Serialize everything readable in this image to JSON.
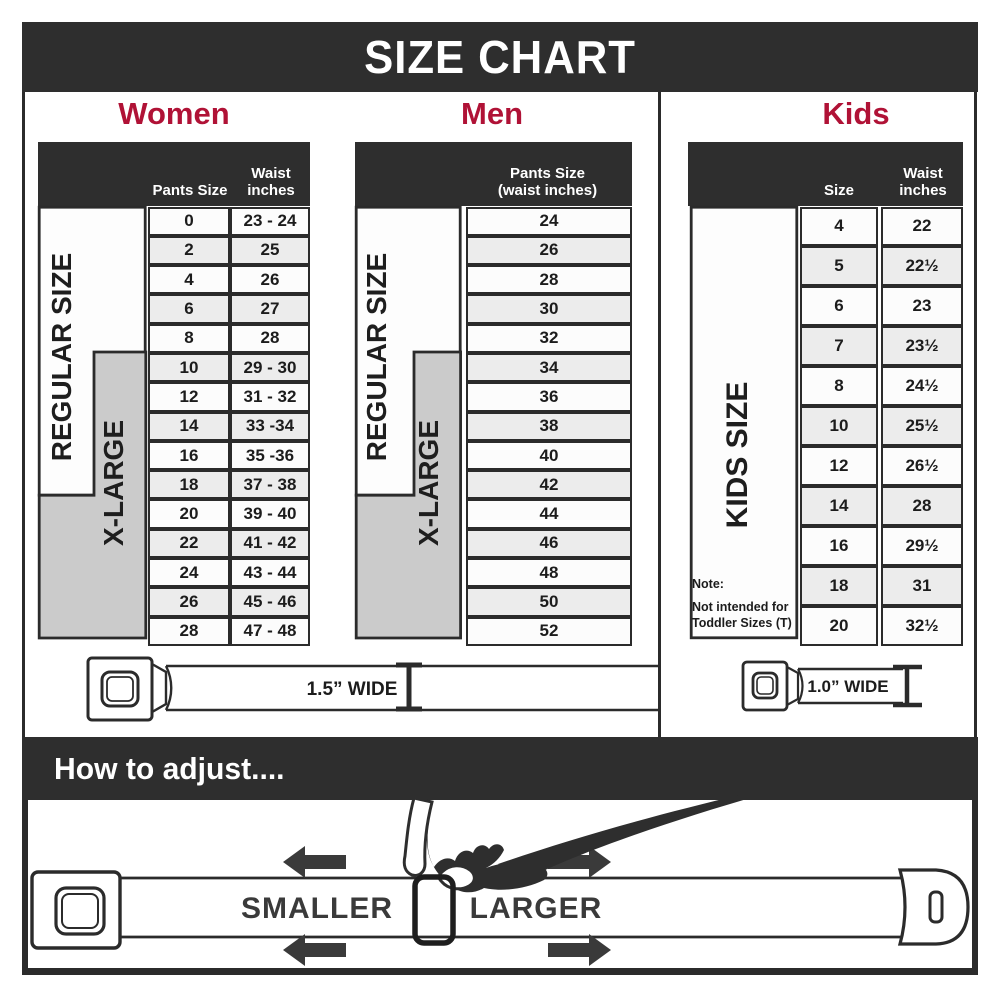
{
  "title": "SIZE CHART",
  "colors": {
    "band_dark": "#2e2e2e",
    "accent_red": "#b01236",
    "row_light": "#fcfcfc",
    "row_alt": "#ececec",
    "label_gray": "#cbcbcb",
    "border_dark": "#2b2b2b"
  },
  "women": {
    "heading": "Women",
    "col1_header": "Pants Size",
    "col2_header_line1": "Waist",
    "col2_header_line2": "inches",
    "regular_label": "REGULAR SIZE",
    "xlarge_label": "X-LARGE",
    "rows": [
      {
        "size": "0",
        "waist": "23 - 24"
      },
      {
        "size": "2",
        "waist": "25"
      },
      {
        "size": "4",
        "waist": "26"
      },
      {
        "size": "6",
        "waist": "27"
      },
      {
        "size": "8",
        "waist": "28"
      },
      {
        "size": "10",
        "waist": "29 - 30"
      },
      {
        "size": "12",
        "waist": "31 - 32"
      },
      {
        "size": "14",
        "waist": "33 -34"
      },
      {
        "size": "16",
        "waist": "35 -36"
      },
      {
        "size": "18",
        "waist": "37 - 38"
      },
      {
        "size": "20",
        "waist": "39 - 40"
      },
      {
        "size": "22",
        "waist": "41 - 42"
      },
      {
        "size": "24",
        "waist": "43 - 44"
      },
      {
        "size": "26",
        "waist": "45 - 46"
      },
      {
        "size": "28",
        "waist": "47 - 48"
      }
    ],
    "belt_width_label": "1.5” WIDE"
  },
  "men": {
    "heading": "Men",
    "col_header_line1": "Pants Size",
    "col_header_line2": "(waist inches)",
    "regular_label": "REGULAR SIZE",
    "xlarge_label": "X-LARGE",
    "rows": [
      "24",
      "26",
      "28",
      "30",
      "32",
      "34",
      "36",
      "38",
      "40",
      "42",
      "44",
      "46",
      "48",
      "50",
      "52"
    ]
  },
  "kids": {
    "heading": "Kids",
    "col1_header": "Size",
    "col2_header_line1": "Waist",
    "col2_header_line2": "inches",
    "label": "KIDS SIZE",
    "note_line1": "Note:",
    "note_line2": "Not intended for",
    "note_line3": "Toddler Sizes (T)",
    "rows": [
      {
        "size": "4",
        "waist": "22"
      },
      {
        "size": "5",
        "waist": "22½"
      },
      {
        "size": "6",
        "waist": "23"
      },
      {
        "size": "7",
        "waist": "23½"
      },
      {
        "size": "8",
        "waist": "24½"
      },
      {
        "size": "10",
        "waist": "25½"
      },
      {
        "size": "12",
        "waist": "26½"
      },
      {
        "size": "14",
        "waist": "28"
      },
      {
        "size": "16",
        "waist": "29½"
      },
      {
        "size": "18",
        "waist": "31"
      },
      {
        "size": "20",
        "waist": "32½"
      }
    ],
    "belt_width_label": "1.0” WIDE"
  },
  "adjust": {
    "heading": "How to adjust....",
    "smaller_label": "SMALLER",
    "larger_label": "LARGER"
  },
  "chart_data": [
    {
      "type": "table",
      "title": "Women",
      "columns": [
        "Pants Size",
        "Waist inches"
      ],
      "row_groups": {
        "REGULAR SIZE": [
          "0",
          "2",
          "4",
          "6",
          "8",
          "10",
          "12",
          "14",
          "16",
          "18"
        ],
        "X-LARGE": [
          "10",
          "12",
          "14",
          "16",
          "18",
          "20",
          "22",
          "24",
          "26",
          "28"
        ]
      },
      "rows": [
        [
          "0",
          "23 - 24"
        ],
        [
          "2",
          "25"
        ],
        [
          "4",
          "26"
        ],
        [
          "6",
          "27"
        ],
        [
          "8",
          "28"
        ],
        [
          "10",
          "29 - 30"
        ],
        [
          "12",
          "31 - 32"
        ],
        [
          "14",
          "33 -34"
        ],
        [
          "16",
          "35 -36"
        ],
        [
          "18",
          "37 - 38"
        ],
        [
          "20",
          "39 - 40"
        ],
        [
          "22",
          "41 - 42"
        ],
        [
          "24",
          "43 - 44"
        ],
        [
          "26",
          "45 - 46"
        ],
        [
          "28",
          "47 - 48"
        ]
      ],
      "belt_width": "1.5” WIDE"
    },
    {
      "type": "table",
      "title": "Men",
      "columns": [
        "Pants Size (waist inches)"
      ],
      "row_groups": {
        "REGULAR SIZE": [
          "24",
          "26",
          "28",
          "30",
          "32",
          "34"
        ],
        "X-LARGE": [
          "34",
          "36",
          "38",
          "40",
          "42",
          "44",
          "46",
          "48",
          "50",
          "52"
        ]
      },
      "rows": [
        [
          "24"
        ],
        [
          "26"
        ],
        [
          "28"
        ],
        [
          "30"
        ],
        [
          "32"
        ],
        [
          "34"
        ],
        [
          "36"
        ],
        [
          "38"
        ],
        [
          "40"
        ],
        [
          "42"
        ],
        [
          "44"
        ],
        [
          "46"
        ],
        [
          "48"
        ],
        [
          "50"
        ],
        [
          "52"
        ]
      ],
      "belt_width": "1.5” WIDE"
    },
    {
      "type": "table",
      "title": "Kids",
      "columns": [
        "Size",
        "Waist inches"
      ],
      "row_groups": {
        "KIDS SIZE": [
          "4",
          "5",
          "6",
          "7",
          "8",
          "10",
          "12",
          "14",
          "16",
          "18",
          "20"
        ]
      },
      "rows": [
        [
          "4",
          "22"
        ],
        [
          "5",
          "22½"
        ],
        [
          "6",
          "23"
        ],
        [
          "7",
          "23½"
        ],
        [
          "8",
          "24½"
        ],
        [
          "10",
          "25½"
        ],
        [
          "12",
          "26½"
        ],
        [
          "14",
          "28"
        ],
        [
          "16",
          "29½"
        ],
        [
          "18",
          "31"
        ],
        [
          "20",
          "32½"
        ]
      ],
      "note": "Note: Not intended for Toddler Sizes (T)",
      "belt_width": "1.0” WIDE"
    }
  ]
}
